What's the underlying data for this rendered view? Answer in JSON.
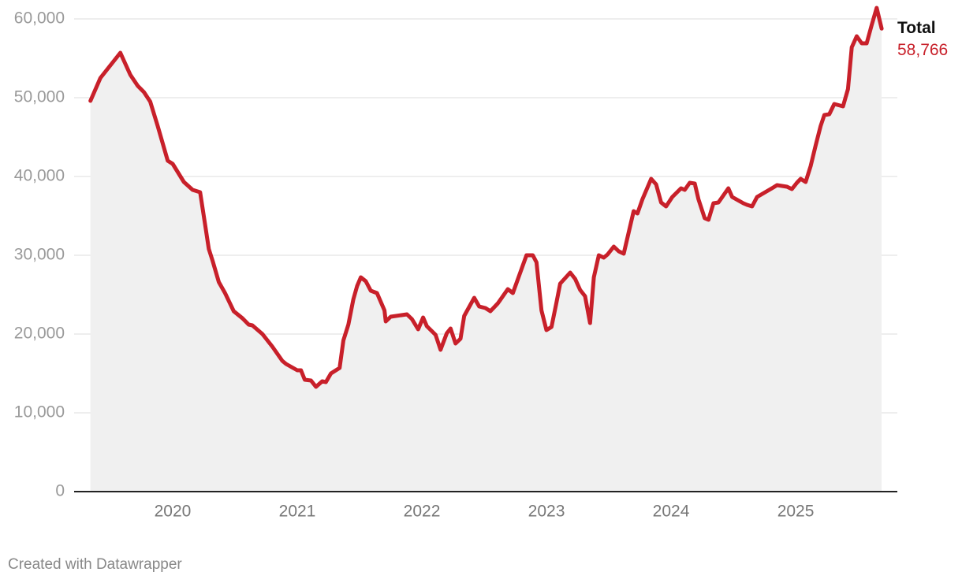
{
  "chart_data": {
    "type": "area-line",
    "x": [
      2019.34,
      2019.42,
      2019.58,
      2019.66,
      2019.72,
      2019.77,
      2019.82,
      2019.88,
      2019.96,
      2020.0,
      2020.09,
      2020.16,
      2020.22,
      2020.26,
      2020.29,
      2020.32,
      2020.37,
      2020.42,
      2020.49,
      2020.56,
      2020.61,
      2020.64,
      2020.72,
      2020.8,
      2020.88,
      2020.91,
      2021.0,
      2021.03,
      2021.06,
      2021.11,
      2021.15,
      2021.2,
      2021.23,
      2021.27,
      2021.34,
      2021.37,
      2021.41,
      2021.45,
      2021.48,
      2021.51,
      2021.55,
      2021.59,
      2021.64,
      2021.7,
      2021.71,
      2021.75,
      2021.88,
      2021.92,
      2021.97,
      2022.01,
      2022.04,
      2022.11,
      2022.15,
      2022.2,
      2022.23,
      2022.27,
      2022.31,
      2022.34,
      2022.42,
      2022.46,
      2022.51,
      2022.55,
      2022.61,
      2022.69,
      2022.73,
      2022.84,
      2022.89,
      2022.92,
      2022.96,
      2023.0,
      2023.04,
      2023.08,
      2023.11,
      2023.19,
      2023.23,
      2023.27,
      2023.31,
      2023.35,
      2023.38,
      2023.42,
      2023.46,
      2023.49,
      2023.54,
      2023.58,
      2023.62,
      2023.66,
      2023.7,
      2023.73,
      2023.77,
      2023.84,
      2023.88,
      2023.92,
      2023.96,
      2024.01,
      2024.08,
      2024.11,
      2024.15,
      2024.19,
      2024.22,
      2024.27,
      2024.3,
      2024.34,
      2024.38,
      2024.42,
      2024.46,
      2024.49,
      2024.58,
      2024.61,
      2024.65,
      2024.69,
      2024.82,
      2024.85,
      2024.93,
      2024.97,
      2025.01,
      2025.04,
      2025.08,
      2025.12,
      2025.16,
      2025.2,
      2025.23,
      2025.27,
      2025.31,
      2025.38,
      2025.42,
      2025.45,
      2025.49,
      2025.53,
      2025.57,
      2025.61,
      2025.65,
      2025.69
    ],
    "series": [
      {
        "name": "Total",
        "color": "#c8202a",
        "values": [
          49600,
          52500,
          55700,
          52900,
          51500,
          50700,
          49500,
          46400,
          42000,
          41600,
          39300,
          38300,
          38000,
          33900,
          30800,
          29300,
          26600,
          25200,
          22900,
          22000,
          21200,
          21100,
          20000,
          18400,
          16600,
          16200,
          15400,
          15400,
          14200,
          14100,
          13300,
          14000,
          13900,
          15000,
          15700,
          19200,
          21200,
          24400,
          26100,
          27200,
          26700,
          25500,
          25200,
          23000,
          21600,
          22200,
          22500,
          21900,
          20600,
          22100,
          21000,
          19900,
          18000,
          20100,
          20700,
          18800,
          19400,
          22300,
          24600,
          23500,
          23300,
          22900,
          23900,
          25700,
          25200,
          30000,
          30000,
          29100,
          23000,
          20500,
          20900,
          24000,
          26400,
          27800,
          27000,
          25600,
          24800,
          21400,
          27200,
          30000,
          29700,
          30100,
          31100,
          30500,
          30200,
          32900,
          35600,
          35300,
          37100,
          39700,
          39000,
          36700,
          36200,
          37400,
          38500,
          38300,
          39200,
          39100,
          37100,
          34700,
          34500,
          36600,
          36700,
          37600,
          38500,
          37400,
          36600,
          36400,
          36200,
          37400,
          38600,
          38900,
          38700,
          38400,
          39200,
          39700,
          39300,
          41300,
          43900,
          46400,
          47800,
          47900,
          49200,
          48900,
          51100,
          56400,
          57800,
          56900,
          56900,
          59200,
          61400,
          58766
        ],
        "value_labels": [
          null,
          null,
          null,
          null,
          null,
          null,
          null,
          null,
          null,
          null,
          null,
          null,
          null,
          null,
          null,
          null,
          null,
          null,
          null,
          null,
          null,
          null,
          null,
          null,
          null,
          null,
          null,
          null,
          null,
          null,
          null,
          null,
          null,
          null,
          null,
          null,
          null,
          null,
          null,
          null,
          null,
          null,
          null,
          null,
          null,
          null,
          null,
          null,
          null,
          null,
          null,
          null,
          null,
          null,
          null,
          null,
          null,
          null,
          null,
          null,
          null,
          null,
          null,
          null,
          null,
          null,
          null,
          null,
          null,
          null,
          null,
          null,
          null,
          null,
          null,
          null,
          null,
          null,
          null,
          null,
          null,
          null,
          null,
          null,
          null,
          null,
          null,
          null,
          null,
          null,
          null,
          null,
          null,
          null,
          null,
          null,
          null,
          null,
          null,
          null,
          null,
          null,
          null,
          null,
          null,
          null,
          null,
          null,
          null,
          null,
          null,
          null,
          null,
          null,
          null,
          null,
          null,
          null,
          null,
          null,
          null,
          null,
          null,
          null,
          null,
          null,
          null,
          null,
          null,
          null,
          null,
          "58,766"
        ]
      }
    ],
    "area_color": "#f0f0f0",
    "xlim": [
      2019.209,
      2025.816
    ],
    "xticks": [
      2020,
      2021,
      2022,
      2023,
      2024,
      2025
    ],
    "ylim": [
      0,
      60000
    ],
    "yticks": [
      0,
      {
        "value": 10000,
        "label": "10,000"
      },
      {
        "value": 20000,
        "label": "20,000"
      },
      {
        "value": 30000,
        "label": "30,000"
      },
      {
        "value": 40000,
        "label": "40,000"
      },
      {
        "value": 50000,
        "label": "50,000"
      },
      {
        "value": 60000,
        "label": "60,000"
      }
    ],
    "grid": true,
    "credit": "Created with Datawrapper"
  }
}
